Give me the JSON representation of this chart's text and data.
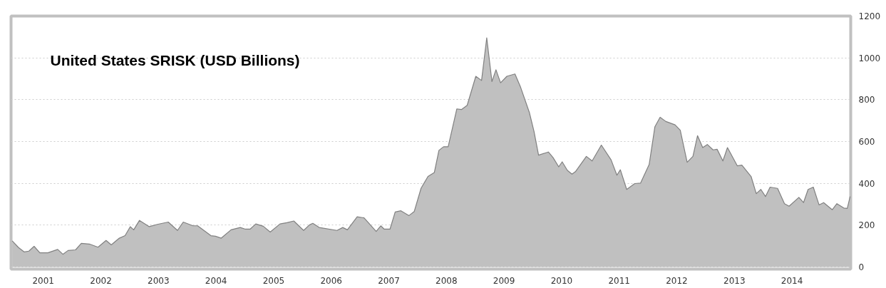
{
  "chart_data": {
    "type": "area",
    "title": "United States SRISK (USD Billions)",
    "x": [
      2000.46,
      2000.57,
      2000.67,
      2000.75,
      2000.84,
      2000.94,
      2001.08,
      2001.25,
      2001.34,
      2001.43,
      2001.56,
      2001.66,
      2001.8,
      2001.95,
      2002.09,
      2002.18,
      2002.32,
      2002.42,
      2002.51,
      2002.57,
      2002.67,
      2002.84,
      2002.98,
      2003.17,
      2003.33,
      2003.43,
      2003.6,
      2003.68,
      2003.91,
      2003.99,
      2004.09,
      2004.26,
      2004.42,
      2004.51,
      2004.59,
      2004.69,
      2004.82,
      2004.94,
      2005.11,
      2005.23,
      2005.35,
      2005.52,
      2005.62,
      2005.68,
      2005.79,
      2006.1,
      2006.2,
      2006.28,
      2006.45,
      2006.57,
      2006.78,
      2006.86,
      2006.92,
      2007.02,
      2007.11,
      2007.21,
      2007.35,
      2007.44,
      2007.56,
      2007.68,
      2007.79,
      2007.87,
      2007.95,
      2008.03,
      2008.18,
      2008.26,
      2008.36,
      2008.51,
      2008.61,
      2008.7,
      2008.79,
      2008.86,
      2008.94,
      2009.05,
      2009.19,
      2009.29,
      2009.44,
      2009.52,
      2009.6,
      2009.77,
      2009.85,
      2009.95,
      2010.01,
      2010.1,
      2010.18,
      2010.24,
      2010.43,
      2010.53,
      2010.69,
      2010.86,
      2010.96,
      2011.02,
      2011.13,
      2011.27,
      2011.37,
      2011.52,
      2011.62,
      2011.71,
      2011.81,
      2011.97,
      2012.06,
      2012.18,
      2012.28,
      2012.36,
      2012.45,
      2012.53,
      2012.63,
      2012.7,
      2012.8,
      2012.88,
      2013.05,
      2013.13,
      2013.29,
      2013.38,
      2013.46,
      2013.54,
      2013.62,
      2013.75,
      2013.87,
      2013.95,
      2014.12,
      2014.2,
      2014.28,
      2014.37,
      2014.47,
      2014.55,
      2014.7,
      2014.78,
      2014.9,
      2014.96,
      2015.01
    ],
    "series": [
      {
        "color": "#c0c0c0",
        "values": [
          125,
          93,
          72,
          76,
          99,
          68,
          68,
          84,
          61,
          79,
          82,
          113,
          110,
          95,
          127,
          106,
          138,
          150,
          193,
          178,
          223,
          193,
          204,
          215,
          175,
          215,
          197,
          197,
          150,
          147,
          138,
          178,
          189,
          181,
          181,
          206,
          195,
          167,
          206,
          212,
          220,
          175,
          201,
          209,
          189,
          175,
          189,
          178,
          240,
          235,
          170,
          197,
          181,
          181,
          263,
          269,
          246,
          265,
          377,
          433,
          452,
          558,
          575,
          575,
          756,
          753,
          773,
          912,
          892,
          1096,
          887,
          943,
          881,
          912,
          923,
          858,
          739,
          649,
          535,
          550,
          524,
          479,
          503,
          462,
          444,
          456,
          529,
          507,
          583,
          512,
          439,
          465,
          371,
          399,
          401,
          490,
          671,
          716,
          696,
          680,
          654,
          501,
          529,
          628,
          571,
          586,
          560,
          563,
          507,
          571,
          484,
          487,
          433,
          351,
          371,
          337,
          382,
          376,
          303,
          291,
          333,
          308,
          371,
          382,
          297,
          308,
          274,
          303,
          282,
          280,
          337
        ]
      }
    ],
    "xlim": [
      2000.44,
      2015.02
    ],
    "xticks": [
      2001,
      2002,
      2003,
      2004,
      2005,
      2006,
      2007,
      2008,
      2009,
      2010,
      2011,
      2012,
      2013,
      2014
    ],
    "ylim": [
      -10,
      1200
    ],
    "yticks": [
      0,
      200,
      400,
      600,
      800,
      1000,
      1200
    ],
    "grid": "y"
  }
}
